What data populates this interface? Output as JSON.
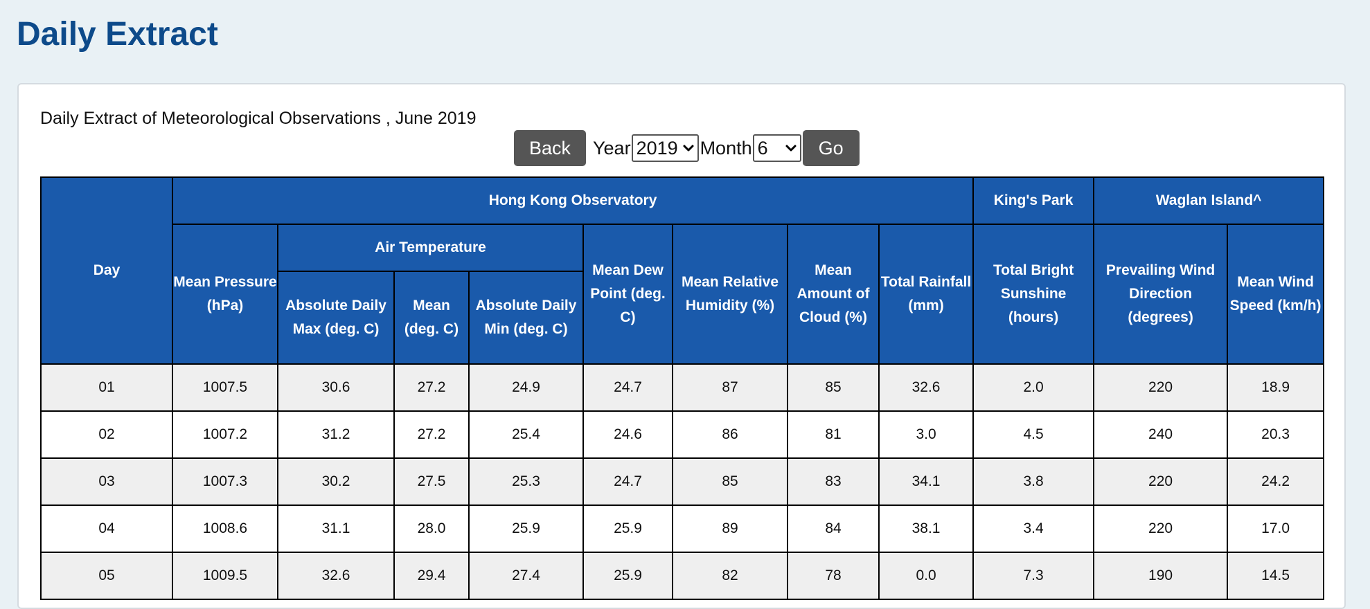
{
  "page_title": "Daily Extract",
  "subtitle": "Daily Extract of Meteorological Observations , June 2019",
  "controls": {
    "back_label": "Back",
    "year_label": "Year",
    "year_value": "2019",
    "month_label": "Month",
    "month_value": "6",
    "go_label": "Go"
  },
  "table": {
    "headers": {
      "day": "Day",
      "hko": "Hong Kong Observatory",
      "kings_park": "King's Park",
      "waglan": "Waglan Island^",
      "mean_pressure": "Mean Pressure (hPa)",
      "air_temp": "Air Temperature",
      "abs_max": "Absolute Daily Max (deg. C)",
      "mean_temp": "Mean (deg. C)",
      "abs_min": "Absolute Daily Min (deg. C)",
      "dew_point": "Mean Dew Point (deg. C)",
      "humidity": "Mean Relative Humidity (%)",
      "cloud": "Mean Amount of Cloud (%)",
      "rainfall": "Total Rainfall (mm)",
      "sunshine": "Total Bright Sunshine (hours)",
      "wind_dir": "Prevailing Wind Direction (degrees)",
      "wind_speed": "Mean Wind Speed (km/h)"
    },
    "rows": [
      [
        "01",
        "1007.5",
        "30.6",
        "27.2",
        "24.9",
        "24.7",
        "87",
        "85",
        "32.6",
        "2.0",
        "220",
        "18.9"
      ],
      [
        "02",
        "1007.2",
        "31.2",
        "27.2",
        "25.4",
        "24.6",
        "86",
        "81",
        "3.0",
        "4.5",
        "240",
        "20.3"
      ],
      [
        "03",
        "1007.3",
        "30.2",
        "27.5",
        "25.3",
        "24.7",
        "85",
        "83",
        "34.1",
        "3.8",
        "220",
        "24.2"
      ],
      [
        "04",
        "1008.6",
        "31.1",
        "28.0",
        "25.9",
        "25.9",
        "89",
        "84",
        "38.1",
        "3.4",
        "220",
        "17.0"
      ],
      [
        "05",
        "1009.5",
        "32.6",
        "29.4",
        "27.4",
        "25.9",
        "82",
        "78",
        "0.0",
        "7.3",
        "190",
        "14.5"
      ]
    ]
  },
  "colors": {
    "title": "#0d4a8a",
    "header_bg": "#1a5aab",
    "button_bg": "#555555",
    "page_bg": "#e9f1f5"
  }
}
